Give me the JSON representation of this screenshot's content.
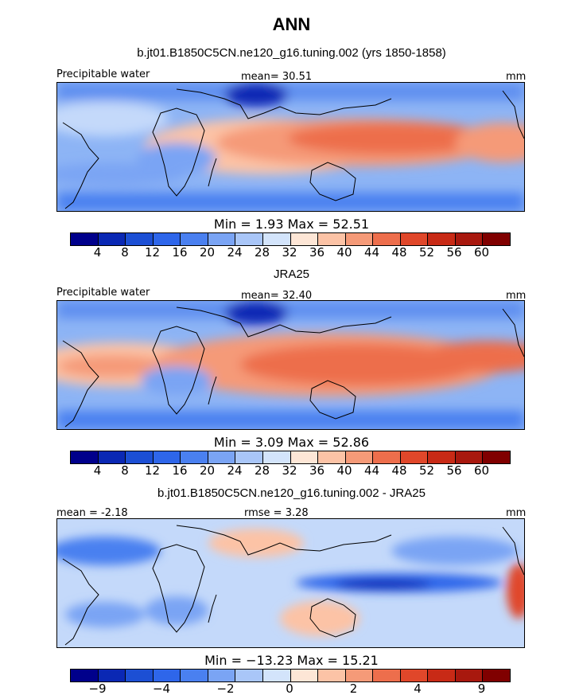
{
  "header": {
    "title": "ANN",
    "run_title": "b.jt01.B1850C5CN.ne120_g16.tuning.002 (yrs 1850-1858)"
  },
  "colors": {
    "abs_scale": [
      "#00008b",
      "#0a28b4",
      "#1c4fd4",
      "#2e66ea",
      "#4a80f0",
      "#7aa4f4",
      "#a9c6f8",
      "#d3e4fb",
      "#fde6d6",
      "#fcc3a6",
      "#f59a78",
      "#ed6e4c",
      "#e0472a",
      "#c82a16",
      "#a8180e",
      "#800000"
    ],
    "diff_scale": [
      "#00008b",
      "#0a28b4",
      "#1c4fd4",
      "#2e66ea",
      "#4a80f0",
      "#7aa4f4",
      "#a9c6f8",
      "#d3e4fb",
      "#fde6d6",
      "#fcc3a6",
      "#f59a78",
      "#ed6e4c",
      "#e0472a",
      "#c82a16",
      "#a8180e",
      "#800000"
    ]
  },
  "panels": [
    {
      "variable": "Precipitable water",
      "stat_text": "mean=  30.51",
      "units": "mm",
      "minmax_text": "Min =   1.93 Max =  52.51",
      "colorbar_ticks": [
        "4",
        "8",
        "12",
        "16",
        "20",
        "24",
        "28",
        "32",
        "36",
        "40",
        "44",
        "48",
        "52",
        "56",
        "60"
      ]
    },
    {
      "heading": "JRA25",
      "variable": "Precipitable water",
      "stat_text": "mean=  32.40",
      "units": "mm",
      "minmax_text": "Min =   3.09 Max =  52.86",
      "colorbar_ticks": [
        "4",
        "8",
        "12",
        "16",
        "20",
        "24",
        "28",
        "32",
        "36",
        "40",
        "44",
        "48",
        "52",
        "56",
        "60"
      ]
    },
    {
      "heading": "b.jt01.B1850C5CN.ne120_g16.tuning.002 - JRA25",
      "mean_text": "mean =  -2.18",
      "rmse_text": "rmse =   3.28",
      "units": "mm",
      "minmax_text": "Min = −13.23 Max =  15.21",
      "colorbar_ticks": [
        "−9",
        "−4",
        "−2",
        "0",
        "2",
        "4",
        "9"
      ]
    }
  ]
}
